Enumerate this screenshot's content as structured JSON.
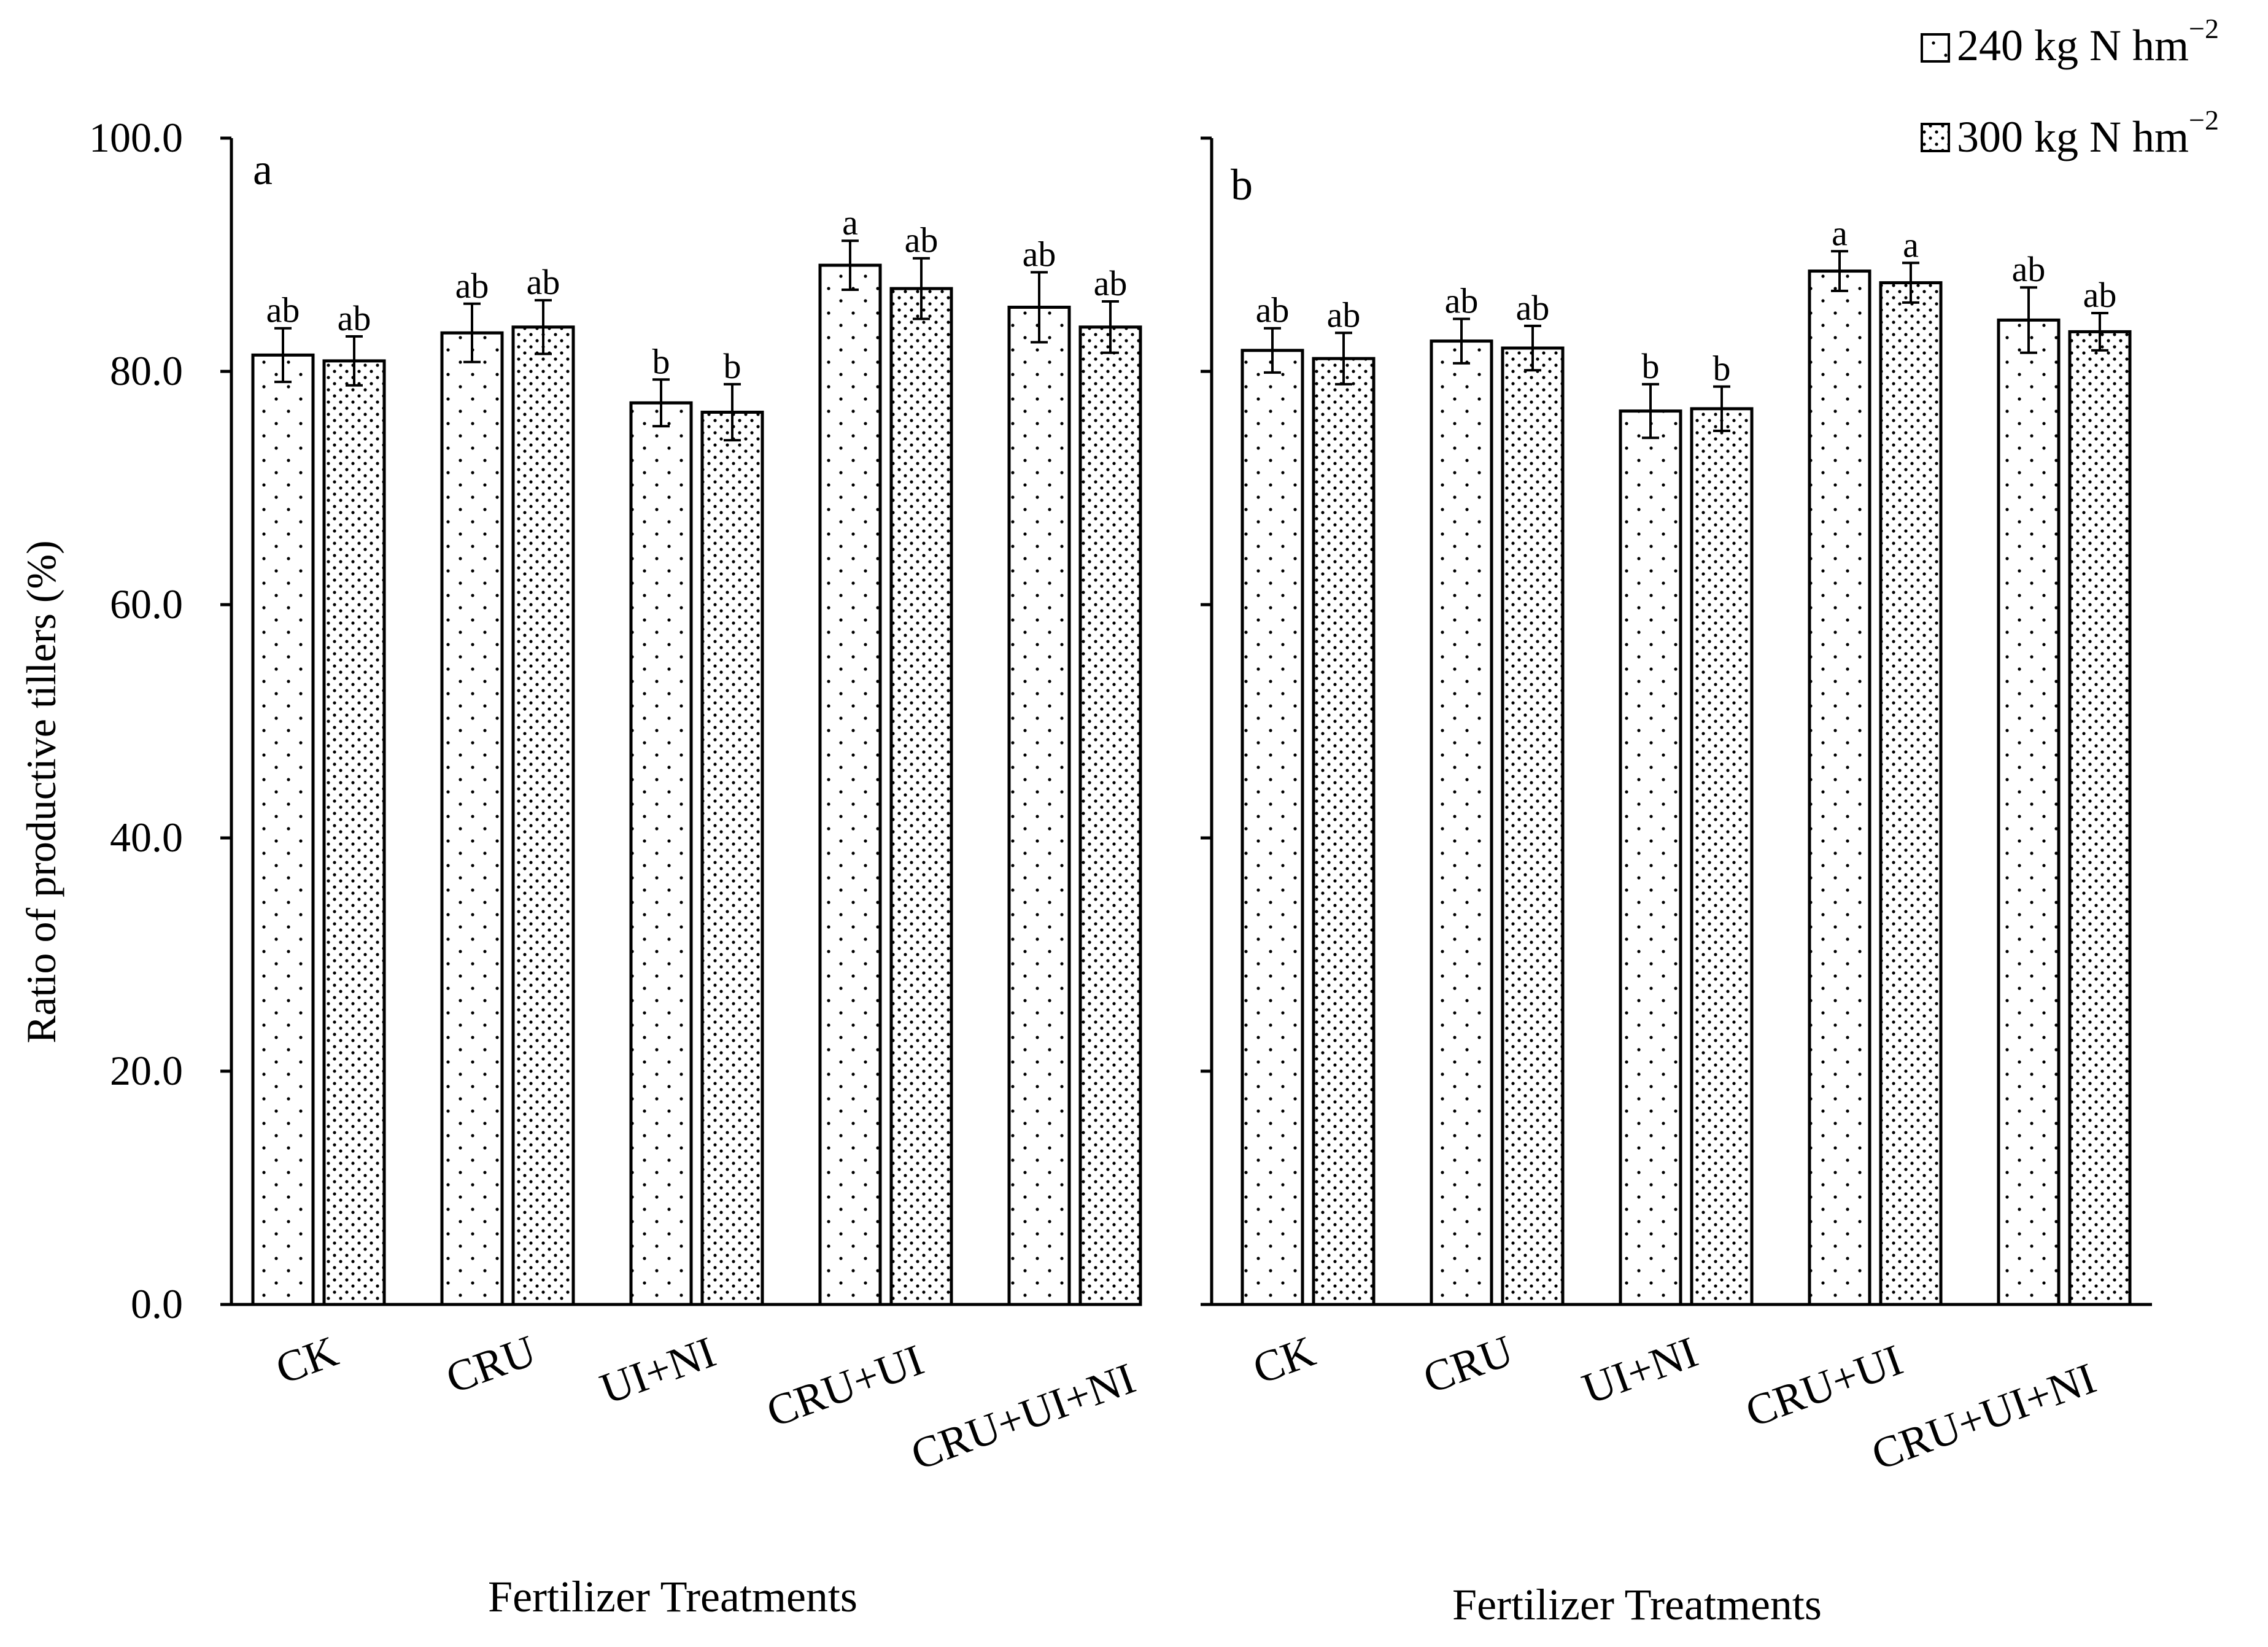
{
  "legend": {
    "items": [
      {
        "label": "240 kg N hm",
        "sup": "−2",
        "pattern": "sparse"
      },
      {
        "label": "300 kg N hm",
        "sup": "−2",
        "pattern": "dense"
      }
    ]
  },
  "y_axis": {
    "label": "Ratio of productive tillers (%)",
    "ticks": [
      "0.0",
      "20.0",
      "40.0",
      "60.0",
      "80.0",
      "100.0"
    ]
  },
  "chart_data": [
    {
      "type": "bar",
      "panel_label": "a",
      "xlabel": "Fertilizer Treatments",
      "ylabel": "Ratio of productive tillers (%)",
      "ylim": [
        0,
        100
      ],
      "categories": [
        "CK",
        "CRU",
        "UI+NI",
        "CRU+UI",
        "CRU+UI+NI"
      ],
      "series": [
        {
          "name": "240 kg N hm−2",
          "values": [
            81.4,
            83.3,
            77.3,
            89.1,
            85.5
          ],
          "errors": [
            2.3,
            2.5,
            2.0,
            2.1,
            3.0
          ],
          "letters": [
            "ab",
            "ab",
            "b",
            "a",
            "ab"
          ]
        },
        {
          "name": "300 kg N hm−2",
          "values": [
            80.9,
            83.8,
            76.5,
            87.1,
            83.8
          ],
          "errors": [
            2.1,
            2.3,
            2.4,
            2.6,
            2.2
          ],
          "letters": [
            "ab",
            "ab",
            "b",
            "ab",
            "ab"
          ]
        }
      ]
    },
    {
      "type": "bar",
      "panel_label": "b",
      "xlabel": "Fertilizer Treatments",
      "ylabel": "",
      "ylim": [
        0,
        100
      ],
      "categories": [
        "CK",
        "CRU",
        "UI+NI",
        "CRU+UI",
        "CRU+UI+NI"
      ],
      "series": [
        {
          "name": "240 kg N hm−2",
          "values": [
            81.8,
            82.6,
            76.6,
            88.6,
            84.4
          ],
          "errors": [
            1.9,
            1.9,
            2.3,
            1.7,
            2.8
          ],
          "letters": [
            "ab",
            "ab",
            "b",
            "a",
            "ab"
          ]
        },
        {
          "name": "300 kg N hm−2",
          "values": [
            81.1,
            82.0,
            76.8,
            87.6,
            83.4
          ],
          "errors": [
            2.2,
            1.9,
            1.9,
            1.7,
            1.6
          ],
          "letters": [
            "ab",
            "ab",
            "b",
            "a",
            "ab"
          ]
        }
      ]
    }
  ]
}
